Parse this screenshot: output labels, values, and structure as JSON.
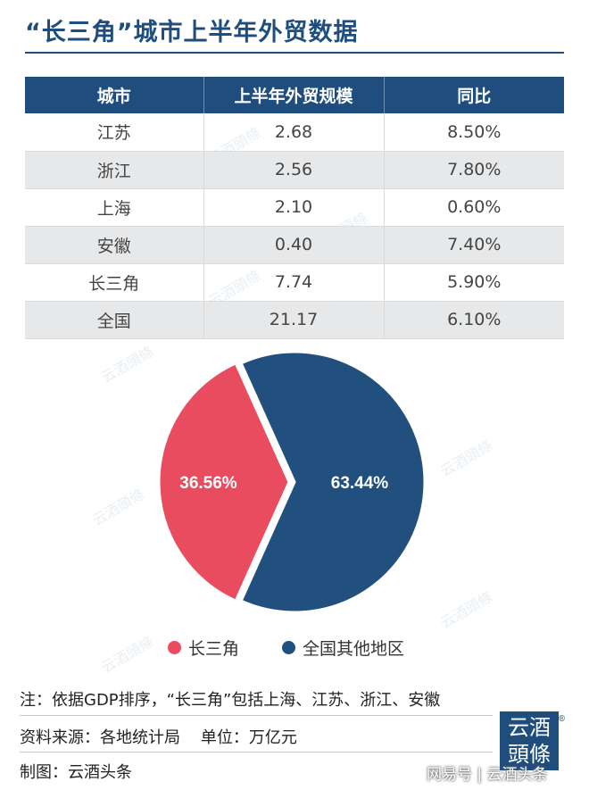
{
  "title": "“长三角”城市上半年外贸数据",
  "table": {
    "headers": [
      "城市",
      "上半年外贸规模",
      "同比"
    ],
    "rows": [
      [
        "江苏",
        "2.68",
        "8.50%"
      ],
      [
        "浙江",
        "2.56",
        "7.80%"
      ],
      [
        "上海",
        "2.10",
        "0.60%"
      ],
      [
        "安徽",
        "0.40",
        "7.40%"
      ],
      [
        "长三角",
        "7.74",
        "5.90%"
      ],
      [
        "全国",
        "21.17",
        "6.10%"
      ]
    ]
  },
  "chart_data": {
    "type": "pie",
    "series": [
      {
        "name": "长三角",
        "value": 36.56,
        "label": "36.56%",
        "color": "#e84c5e"
      },
      {
        "name": "全国其他地区",
        "value": 63.44,
        "label": "63.44%",
        "color": "#21507f"
      }
    ],
    "legend": "bottom"
  },
  "notes": {
    "line1": "注：依据GDP排序，“长三角”包括上海、江苏、浙江、安徽",
    "line2": "资料来源：各地统计局    单位：万亿元",
    "line3": "制图：云酒头条"
  },
  "logo": {
    "text_top": "云酒",
    "text_bottom": "頭條",
    "mark": "®"
  },
  "watermark": "网易号 | 云酒头条",
  "background_watermark": "云酒頭條",
  "colors": {
    "brand": "#1f4e7e",
    "accent": "#e84c5e"
  }
}
